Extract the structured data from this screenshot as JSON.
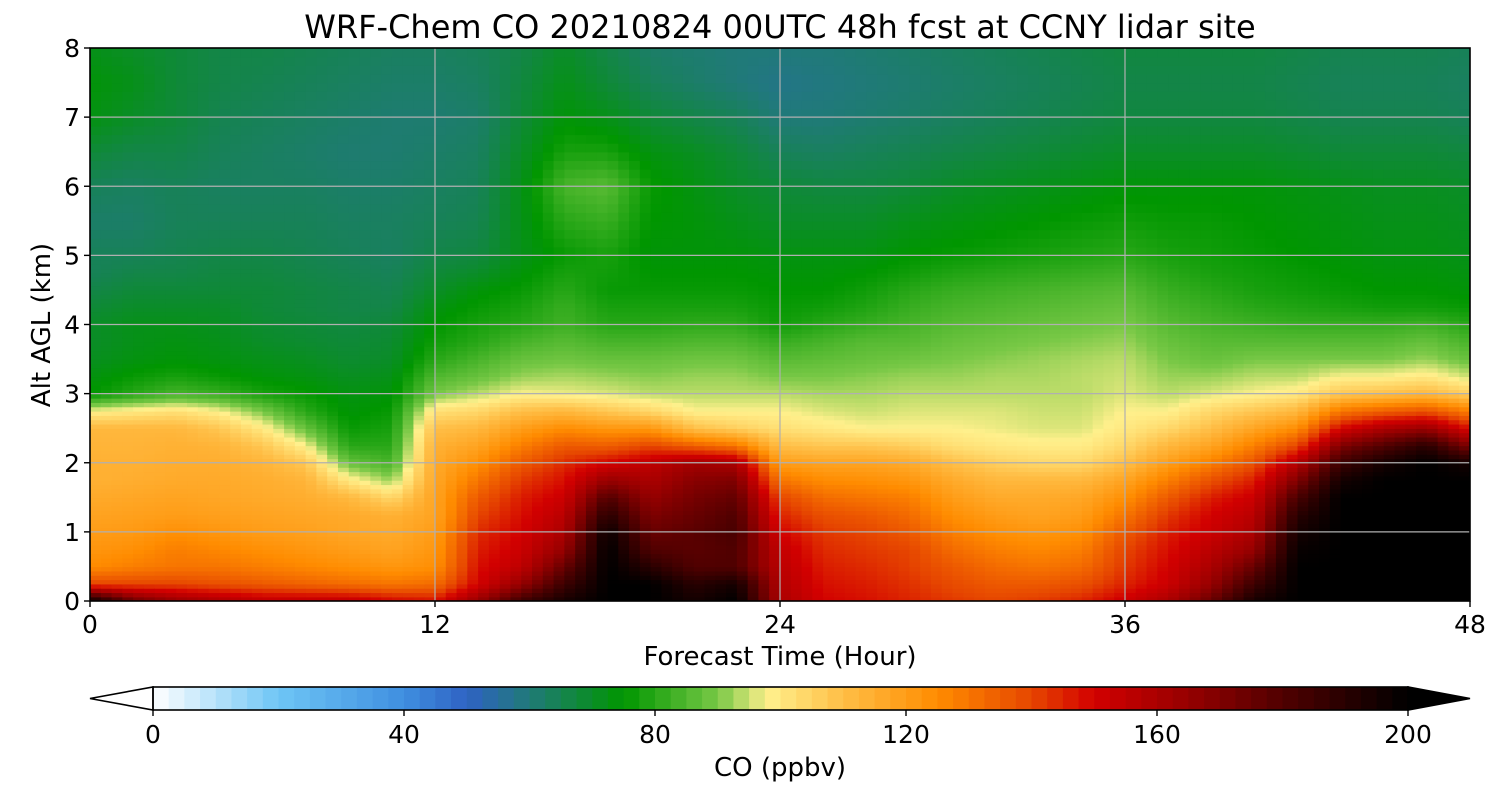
{
  "chart_data": {
    "type": "heatmap",
    "subtype": "filled-contour time-height cross-section",
    "title": "WRF-Chem CO  20210824 00UTC 48h fcst at CCNY lidar site",
    "xlabel": "Forecast Time (Hour)",
    "ylabel": "Alt AGL (km)",
    "xlim": [
      0,
      48
    ],
    "ylim": [
      0,
      8
    ],
    "xticks": [
      0,
      12,
      24,
      36,
      48
    ],
    "xtick_labels": [
      "0",
      "12",
      "24",
      "36",
      "48"
    ],
    "yticks": [
      0,
      1,
      2,
      3,
      4,
      5,
      6,
      7,
      8
    ],
    "ytick_labels": [
      "0",
      "1",
      "2",
      "3",
      "4",
      "5",
      "6",
      "7",
      "8"
    ],
    "grid": true,
    "units": "ppbv",
    "colorbar": {
      "label": "CO  (ppbv)",
      "orientation": "horizontal",
      "placement": "bottom",
      "range": [
        0,
        200
      ],
      "extend": "both",
      "ticks": [
        0,
        40,
        80,
        120,
        160,
        200
      ],
      "tick_labels": [
        "0",
        "40",
        "80",
        "120",
        "160",
        "200"
      ],
      "colormap": [
        {
          "value": 0,
          "color": "#ffffff"
        },
        {
          "value": 20,
          "color": "#6ec5f5"
        },
        {
          "value": 40,
          "color": "#3f8fe0"
        },
        {
          "value": 50,
          "color": "#2f62c3"
        },
        {
          "value": 60,
          "color": "#207a78"
        },
        {
          "value": 75,
          "color": "#009600"
        },
        {
          "value": 90,
          "color": "#78c846"
        },
        {
          "value": 98,
          "color": "#fff08c"
        },
        {
          "value": 110,
          "color": "#ffbe46"
        },
        {
          "value": 125,
          "color": "#ff8c00"
        },
        {
          "value": 140,
          "color": "#e64600"
        },
        {
          "value": 150,
          "color": "#d20000"
        },
        {
          "value": 165,
          "color": "#960000"
        },
        {
          "value": 180,
          "color": "#500000"
        },
        {
          "value": 200,
          "color": "#000000"
        }
      ]
    },
    "grid_data": {
      "x": [
        0,
        1.5,
        3,
        4.5,
        6,
        7.5,
        9,
        10.5,
        12,
        13.5,
        15,
        16.5,
        18,
        19.5,
        21,
        22.5,
        24,
        25.5,
        27,
        28.5,
        30,
        31.5,
        33,
        34.5,
        36,
        37.5,
        39,
        40.5,
        42,
        43.5,
        45,
        46.5,
        48
      ],
      "y": [
        0,
        0.25,
        0.5,
        0.75,
        1,
        1.25,
        1.5,
        1.75,
        2,
        2.25,
        2.5,
        2.75,
        3,
        3.25,
        3.5,
        3.75,
        4,
        4.25,
        4.5,
        4.75,
        5,
        5.5,
        6,
        6.5,
        7,
        7.5,
        8
      ],
      "z_by_time": [
        [
          200,
          140,
          125,
          122,
          120,
          118,
          116,
          114,
          114,
          113,
          112,
          98,
          75,
          73,
          71,
          70,
          70,
          68,
          66,
          64,
          64,
          62,
          64,
          68,
          73,
          74,
          72
        ],
        [
          175,
          140,
          128,
          124,
          121,
          119,
          117,
          115,
          114,
          113,
          112,
          100,
          80,
          76,
          73,
          72,
          72,
          70,
          68,
          66,
          64,
          62,
          63,
          66,
          70,
          72,
          70
        ],
        [
          165,
          140,
          130,
          128,
          124,
          120,
          118,
          116,
          115,
          114,
          112,
          102,
          84,
          78,
          74,
          73,
          72,
          70,
          68,
          66,
          65,
          64,
          64,
          66,
          68,
          68,
          68
        ],
        [
          160,
          138,
          130,
          126,
          122,
          119,
          117,
          116,
          115,
          113,
          108,
          98,
          82,
          76,
          73,
          72,
          71,
          70,
          68,
          67,
          66,
          64,
          63,
          64,
          65,
          66,
          66
        ],
        [
          155,
          136,
          128,
          124,
          120,
          118,
          116,
          115,
          113,
          108,
          100,
          90,
          78,
          74,
          72,
          70,
          69,
          68,
          68,
          67,
          66,
          64,
          63,
          63,
          64,
          65,
          66
        ],
        [
          155,
          134,
          126,
          122,
          119,
          117,
          115,
          113,
          108,
          98,
          88,
          80,
          76,
          73,
          71,
          69,
          68,
          67,
          67,
          66,
          65,
          64,
          63,
          62,
          63,
          64,
          65
        ],
        [
          155,
          132,
          124,
          120,
          117,
          116,
          112,
          100,
          88,
          80,
          76,
          74,
          73,
          71,
          69,
          68,
          67,
          66,
          66,
          65,
          64,
          63,
          62,
          61,
          62,
          63,
          64
        ],
        [
          150,
          130,
          122,
          118,
          116,
          114,
          104,
          92,
          84,
          80,
          78,
          76,
          74,
          72,
          70,
          69,
          68,
          66,
          65,
          64,
          63,
          63,
          62,
          61,
          61,
          62,
          63
        ],
        [
          148,
          132,
          124,
          122,
          120,
          118,
          118,
          117,
          116,
          114,
          110,
          102,
          90,
          85,
          80,
          77,
          75,
          73,
          70,
          68,
          66,
          64,
          63,
          62,
          61,
          62,
          63
        ],
        [
          165,
          150,
          148,
          146,
          144,
          140,
          136,
          130,
          124,
          118,
          112,
          104,
          94,
          88,
          84,
          80,
          78,
          76,
          74,
          70,
          67,
          65,
          64,
          63,
          62,
          63,
          64
        ],
        [
          185,
          165,
          155,
          152,
          150,
          148,
          146,
          142,
          136,
          128,
          120,
          110,
          98,
          92,
          88,
          84,
          80,
          78,
          76,
          74,
          72,
          72,
          72,
          70,
          68,
          67,
          66
        ],
        [
          195,
          185,
          175,
          165,
          160,
          156,
          152,
          148,
          144,
          136,
          125,
          112,
          97,
          93,
          89,
          86,
          83,
          82,
          80,
          78,
          76,
          80,
          84,
          78,
          74,
          72,
          70
        ],
        [
          200,
          200,
          200,
          200,
          198,
          190,
          180,
          165,
          150,
          135,
          122,
          108,
          96,
          92,
          88,
          84,
          80,
          78,
          76,
          77,
          78,
          82,
          86,
          78,
          72,
          68,
          66
        ],
        [
          200,
          200,
          190,
          180,
          175,
          170,
          165,
          160,
          155,
          140,
          122,
          104,
          94,
          91,
          88,
          84,
          80,
          78,
          76,
          75,
          74,
          75,
          76,
          73,
          68,
          64,
          62
        ],
        [
          195,
          190,
          180,
          178,
          178,
          175,
          172,
          168,
          162,
          135,
          110,
          98,
          94,
          92,
          89,
          85,
          81,
          78,
          76,
          75,
          74,
          74,
          73,
          71,
          66,
          62,
          61
        ],
        [
          200,
          195,
          180,
          180,
          182,
          180,
          176,
          170,
          160,
          130,
          106,
          98,
          94,
          92,
          89,
          85,
          81,
          78,
          76,
          75,
          74,
          72,
          70,
          68,
          64,
          60,
          60
        ],
        [
          160,
          158,
          156,
          154,
          150,
          145,
          140,
          130,
          120,
          110,
          102,
          98,
          94,
          90,
          86,
          82,
          77,
          76,
          75,
          74,
          73,
          70,
          68,
          64,
          60,
          58,
          60
        ],
        [
          150,
          148,
          146,
          144,
          142,
          138,
          132,
          125,
          118,
          108,
          100,
          96,
          93,
          90,
          87,
          84,
          80,
          77,
          75,
          74,
          73,
          70,
          67,
          63,
          60,
          59,
          60
        ],
        [
          148,
          146,
          144,
          142,
          140,
          136,
          130,
          124,
          118,
          108,
          98,
          95,
          93,
          91,
          88,
          86,
          82,
          79,
          77,
          75,
          73,
          70,
          67,
          64,
          61,
          60,
          61
        ],
        [
          145,
          143,
          141,
          140,
          136,
          132,
          128,
          122,
          116,
          106,
          98,
          96,
          94,
          92,
          89,
          86,
          84,
          82,
          80,
          77,
          75,
          72,
          68,
          65,
          62,
          61,
          62
        ],
        [
          142,
          139,
          136,
          132,
          128,
          124,
          120,
          116,
          110,
          102,
          98,
          96,
          94,
          92,
          90,
          88,
          86,
          84,
          82,
          79,
          76,
          73,
          70,
          66,
          63,
          62,
          63
        ],
        [
          140,
          136,
          132,
          128,
          124,
          120,
          116,
          112,
          106,
          100,
          97,
          96,
          94,
          93,
          91,
          89,
          87,
          85,
          83,
          80,
          77,
          74,
          71,
          67,
          64,
          63,
          64
        ],
        [
          142,
          136,
          130,
          126,
          122,
          118,
          116,
          112,
          104,
          99,
          96,
          95,
          94,
          93,
          92,
          90,
          88,
          86,
          84,
          81,
          78,
          75,
          72,
          68,
          65,
          64,
          65
        ],
        [
          145,
          138,
          132,
          128,
          124,
          120,
          117,
          112,
          104,
          99,
          96,
          95,
          94,
          94,
          93,
          91,
          89,
          87,
          85,
          82,
          79,
          76,
          73,
          69,
          66,
          65,
          66
        ],
        [
          152,
          145,
          142,
          140,
          136,
          130,
          124,
          118,
          110,
          104,
          100,
          98,
          96,
          95,
          94,
          92,
          90,
          88,
          86,
          83,
          80,
          77,
          74,
          70,
          67,
          66,
          67
        ],
        [
          160,
          152,
          150,
          148,
          146,
          142,
          136,
          128,
          120,
          112,
          104,
          98,
          94,
          92,
          90,
          88,
          86,
          84,
          82,
          80,
          78,
          76,
          74,
          70,
          67,
          66,
          67
        ],
        [
          175,
          165,
          160,
          156,
          152,
          150,
          146,
          138,
          128,
          118,
          110,
          104,
          96,
          92,
          88,
          86,
          84,
          82,
          80,
          78,
          77,
          76,
          74,
          70,
          67,
          66,
          67
        ],
        [
          195,
          185,
          175,
          165,
          160,
          156,
          152,
          146,
          138,
          128,
          118,
          108,
          98,
          94,
          90,
          86,
          83,
          80,
          78,
          77,
          76,
          75,
          74,
          70,
          67,
          66,
          67
        ],
        [
          200,
          200,
          200,
          198,
          195,
          190,
          182,
          170,
          158,
          140,
          125,
          112,
          100,
          94,
          90,
          86,
          82,
          79,
          77,
          76,
          75,
          74,
          73,
          69,
          66,
          65,
          66
        ],
        [
          200,
          200,
          200,
          200,
          200,
          200,
          200,
          195,
          185,
          170,
          150,
          130,
          108,
          98,
          90,
          86,
          82,
          78,
          76,
          75,
          74,
          73,
          72,
          68,
          65,
          64,
          65
        ],
        [
          200,
          200,
          200,
          200,
          200,
          200,
          200,
          200,
          195,
          180,
          160,
          135,
          110,
          98,
          90,
          86,
          82,
          77,
          75,
          74,
          73,
          72,
          71,
          68,
          65,
          64,
          65
        ],
        [
          200,
          200,
          200,
          200,
          200,
          200,
          200,
          200,
          200,
          190,
          165,
          138,
          112,
          100,
          92,
          88,
          83,
          77,
          75,
          74,
          73,
          72,
          71,
          68,
          65,
          64,
          65
        ],
        [
          200,
          200,
          200,
          200,
          200,
          200,
          200,
          200,
          195,
          170,
          148,
          128,
          106,
          95,
          88,
          84,
          80,
          76,
          74,
          73,
          72,
          71,
          70,
          67,
          64,
          63,
          64
        ]
      ]
    }
  }
}
